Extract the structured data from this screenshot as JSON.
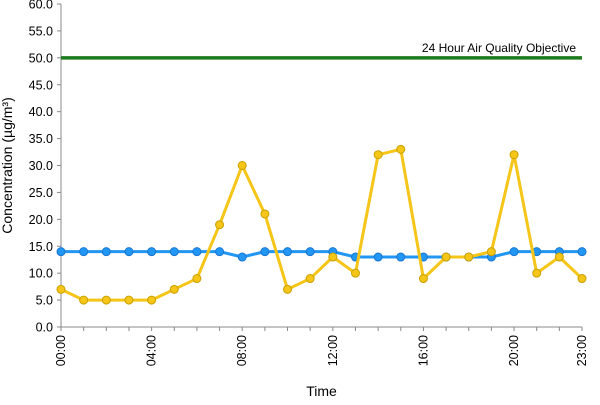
{
  "chart_data": {
    "type": "line",
    "title": "",
    "xlabel": "Time",
    "ylabel": "Concentration (µg/m³)",
    "ylim": [
      0,
      60
    ],
    "y_ticks": [
      "0.0",
      "5.0",
      "10.0",
      "15.0",
      "20.0",
      "25.0",
      "30.0",
      "35.0",
      "40.0",
      "45.0",
      "50.0",
      "55.0",
      "60.0"
    ],
    "x_range": [
      0,
      23
    ],
    "x_ticks": [
      {
        "hour": 0,
        "label": "00:00"
      },
      {
        "hour": 4,
        "label": "04:00"
      },
      {
        "hour": 8,
        "label": "08:00"
      },
      {
        "hour": 12,
        "label": "12:00"
      },
      {
        "hour": 16,
        "label": "16:00"
      },
      {
        "hour": 20,
        "label": "20:00"
      },
      {
        "hour": 23,
        "label": "23:00"
      }
    ],
    "x": [
      0,
      1,
      2,
      3,
      4,
      5,
      6,
      7,
      8,
      9,
      10,
      11,
      12,
      13,
      14,
      15,
      16,
      17,
      18,
      19,
      20,
      21,
      22,
      23
    ],
    "series": [
      {
        "color": "#2196F3",
        "values": [
          14,
          14,
          14,
          14,
          14,
          14,
          14,
          14,
          13,
          14,
          14,
          14,
          14,
          13,
          13,
          13,
          13,
          13,
          13,
          13,
          14,
          14,
          14,
          14
        ]
      },
      {
        "color": "#F5C518",
        "values": [
          7,
          5,
          5,
          5,
          5,
          7,
          9,
          19,
          30,
          21,
          7,
          9,
          13,
          10,
          32,
          33,
          9,
          13,
          13,
          14,
          32,
          10,
          13,
          9
        ]
      }
    ],
    "reference_line": {
      "value": 50,
      "label": "24 Hour Air Quality Objective",
      "color": "#1E7B1E"
    },
    "grid": false,
    "legend": "none"
  }
}
